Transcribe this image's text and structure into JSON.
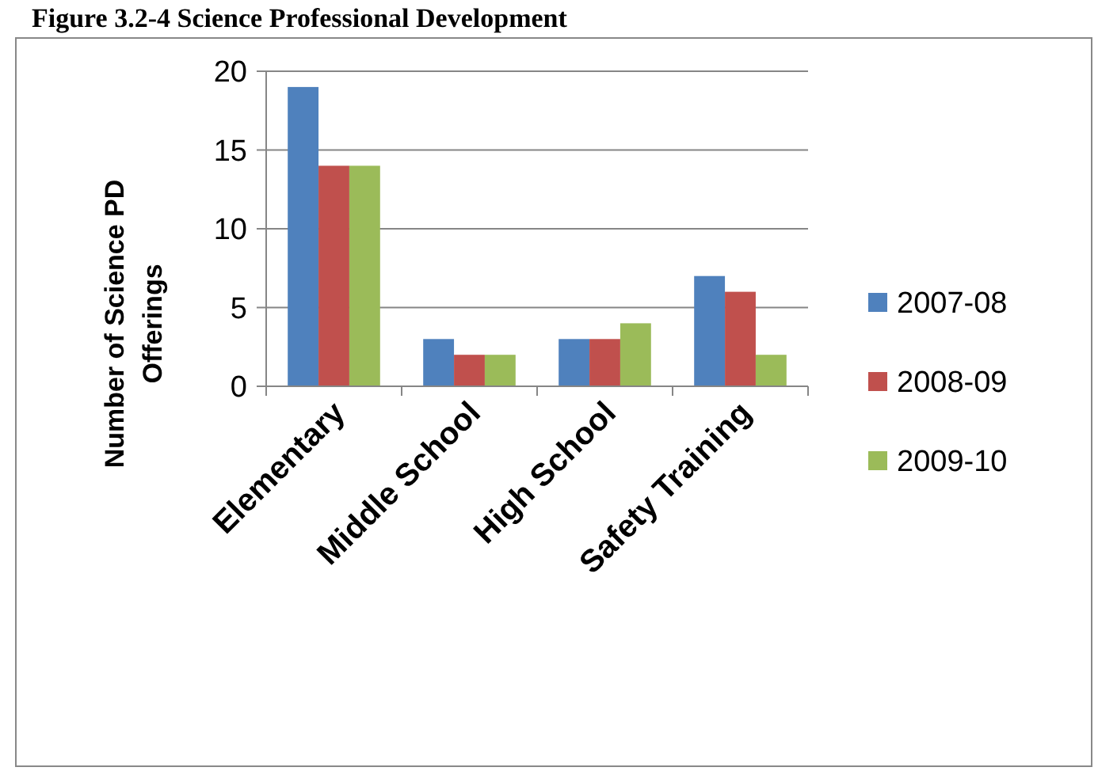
{
  "chart_data": {
    "type": "bar",
    "title": "Figure 3.2-4 Science Professional Development",
    "ylabel": "Number of Science PD Offerings",
    "categories": [
      "Elementary",
      "Middle School",
      "High School",
      "Safety Training"
    ],
    "series": [
      {
        "name": "2007-08",
        "color": "#4f81bd",
        "values": [
          19,
          3,
          3,
          7
        ]
      },
      {
        "name": "2008-09",
        "color": "#c0504d",
        "values": [
          14,
          2,
          3,
          6
        ]
      },
      {
        "name": "2009-10",
        "color": "#9bbb59",
        "values": [
          14,
          2,
          4,
          2
        ]
      }
    ],
    "ylim": [
      0,
      20
    ],
    "yticks": [
      0,
      5,
      10,
      15,
      20
    ],
    "grid": "y",
    "legend": "right"
  }
}
